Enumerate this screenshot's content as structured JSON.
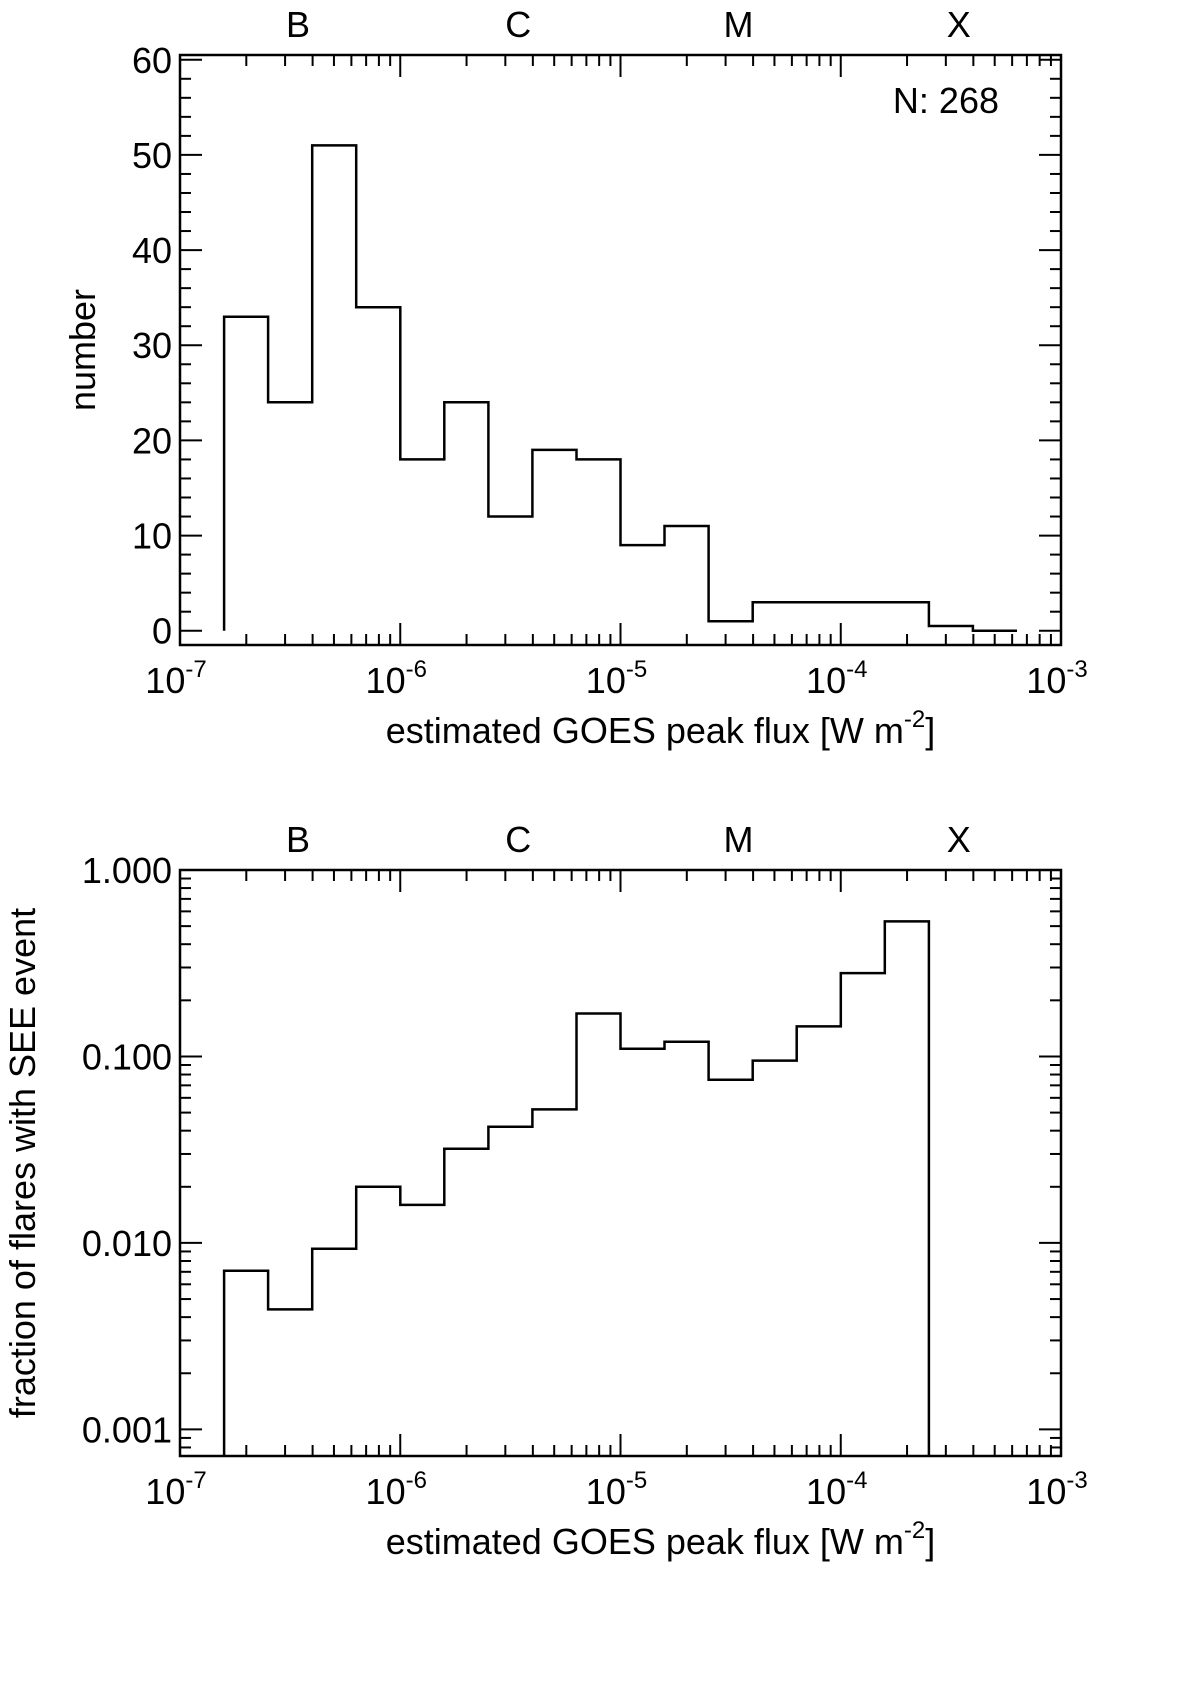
{
  "chart_data": [
    {
      "type": "histogram",
      "class_labels": [
        "B",
        "C",
        "M",
        "X"
      ],
      "class_label_positions": [
        1e-07,
        1e-06,
        1e-05,
        0.0001
      ],
      "annotation": "N: 268",
      "xlabel": "estimated GOES peak flux [W m",
      "xlabel_superscript": "-2",
      "xlabel_suffix": "]",
      "ylabel": "number",
      "x_scale": "log",
      "xlim": [
        1e-07,
        0.001
      ],
      "x_ticks": [
        {
          "value": 1e-07,
          "base": "10",
          "exp": "-7"
        },
        {
          "value": 1e-06,
          "base": "10",
          "exp": "-6"
        },
        {
          "value": 1e-05,
          "base": "10",
          "exp": "-5"
        },
        {
          "value": 0.0001,
          "base": "10",
          "exp": "-4"
        },
        {
          "value": 0.001,
          "base": "10",
          "exp": "-3"
        }
      ],
      "y_scale": "linear",
      "ylim": [
        -1.5,
        60.5
      ],
      "y_ticks": [
        {
          "value": 0,
          "label": "0"
        },
        {
          "value": 10,
          "label": "10"
        },
        {
          "value": 20,
          "label": "20"
        },
        {
          "value": 30,
          "label": "30"
        },
        {
          "value": 40,
          "label": "40"
        },
        {
          "value": 50,
          "label": "50"
        },
        {
          "value": 60,
          "label": "60"
        }
      ],
      "bin_log_width": 0.2,
      "bin_start_log": -6.8,
      "bins_end_drop": true,
      "values": [
        33,
        24,
        51,
        34,
        18,
        24,
        12,
        19,
        18,
        9,
        11,
        1,
        3,
        3,
        3,
        3,
        0.5,
        0
      ]
    },
    {
      "type": "histogram",
      "class_labels": [
        "B",
        "C",
        "M",
        "X"
      ],
      "class_label_positions": [
        1e-07,
        1e-06,
        1e-05,
        0.0001
      ],
      "xlabel": "estimated GOES peak flux [W m",
      "xlabel_superscript": "-2",
      "xlabel_suffix": "]",
      "ylabel": "fraction of flares with SEE event",
      "x_scale": "log",
      "xlim": [
        1e-07,
        0.001
      ],
      "x_ticks": [
        {
          "value": 1e-07,
          "base": "10",
          "exp": "-7"
        },
        {
          "value": 1e-06,
          "base": "10",
          "exp": "-6"
        },
        {
          "value": 1e-05,
          "base": "10",
          "exp": "-5"
        },
        {
          "value": 0.0001,
          "base": "10",
          "exp": "-4"
        },
        {
          "value": 0.001,
          "base": "10",
          "exp": "-3"
        }
      ],
      "y_scale": "log",
      "ylim": [
        0.00072,
        1.0
      ],
      "y_ticks": [
        {
          "value": 0.001,
          "label": "0.001"
        },
        {
          "value": 0.01,
          "label": "0.010"
        },
        {
          "value": 0.1,
          "label": "0.100"
        },
        {
          "value": 1.0,
          "label": "1.000"
        }
      ],
      "bin_log_width": 0.2,
      "bin_start_log": -6.8,
      "bins_end_drop": true,
      "values": [
        0.0071,
        0.0044,
        0.0093,
        0.02,
        0.016,
        0.032,
        0.042,
        0.052,
        0.17,
        0.11,
        0.12,
        0.075,
        0.095,
        0.145,
        0.28,
        0.53
      ]
    }
  ]
}
